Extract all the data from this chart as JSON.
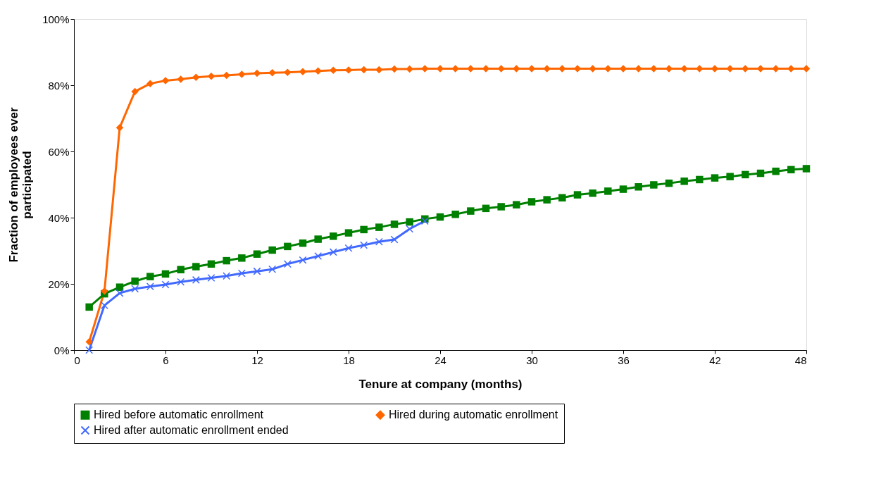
{
  "chart_data": {
    "type": "line",
    "xlabel": "Tenure at company (months)",
    "ylabel": "Fraction of employees ever participated",
    "x": [
      1,
      2,
      3,
      4,
      5,
      6,
      7,
      8,
      9,
      10,
      11,
      12,
      13,
      14,
      15,
      16,
      17,
      18,
      19,
      20,
      21,
      22,
      23,
      24,
      25,
      26,
      27,
      28,
      29,
      30,
      31,
      32,
      33,
      34,
      35,
      36,
      37,
      38,
      39,
      40,
      41,
      42,
      43,
      44,
      45,
      46,
      47,
      48
    ],
    "xlim": [
      0,
      48
    ],
    "xticks": [
      0,
      6,
      12,
      18,
      24,
      30,
      36,
      42,
      48
    ],
    "ylim": [
      0,
      100
    ],
    "yticks": [
      {
        "value": 0,
        "label": "0%"
      },
      {
        "value": 20,
        "label": "20%"
      },
      {
        "value": 40,
        "label": "40%"
      },
      {
        "value": 60,
        "label": "60%"
      },
      {
        "value": 80,
        "label": "80%"
      },
      {
        "value": 100,
        "label": "100%"
      }
    ],
    "grid": false,
    "legend": "bottom",
    "series": [
      {
        "name": "Hired before automatic enrollment",
        "color": "#008000",
        "marker": "square",
        "values": [
          13,
          17,
          19,
          20.8,
          22.2,
          23,
          24.3,
          25.2,
          26,
          27,
          27.8,
          29,
          30.2,
          31.3,
          32.3,
          33.5,
          34.4,
          35.4,
          36.4,
          37.1,
          38,
          38.7,
          39.6,
          40.2,
          41,
          42,
          42.8,
          43.3,
          43.9,
          44.8,
          45.4,
          46,
          46.9,
          47.4,
          48,
          48.6,
          49.3,
          49.9,
          50.4,
          51,
          51.5,
          52,
          52.4,
          53,
          53.4,
          54,
          54.5,
          54.8
        ]
      },
      {
        "name": "Hired during automatic enrollment",
        "color": "#ff6600",
        "marker": "diamond",
        "values": [
          2.5,
          17.8,
          67.2,
          78.1,
          80.5,
          81.4,
          81.8,
          82.4,
          82.7,
          83,
          83.3,
          83.6,
          83.8,
          83.9,
          84.1,
          84.3,
          84.5,
          84.6,
          84.7,
          84.7,
          84.9,
          84.9,
          85,
          85,
          85,
          85,
          85,
          85,
          85,
          85,
          85,
          85,
          85,
          85,
          85,
          85,
          85,
          85,
          85,
          85,
          85,
          85,
          85,
          85,
          85,
          85,
          85,
          85
        ]
      },
      {
        "name": "Hired after automatic enrollment ended",
        "color": "#4169ff",
        "marker": "cross",
        "values": [
          0,
          13.5,
          17.2,
          18.5,
          19.2,
          19.8,
          20.6,
          21.2,
          21.8,
          22.4,
          23.2,
          23.8,
          24.4,
          26,
          27.2,
          28.4,
          29.6,
          30.8,
          31.7,
          32.7,
          33.4,
          36.6,
          39,
          null,
          null,
          null,
          null,
          null,
          null,
          null,
          null,
          null,
          null,
          null,
          null,
          null,
          null,
          null,
          null,
          null,
          null,
          null,
          null,
          null,
          null,
          null,
          null,
          null
        ]
      }
    ]
  }
}
